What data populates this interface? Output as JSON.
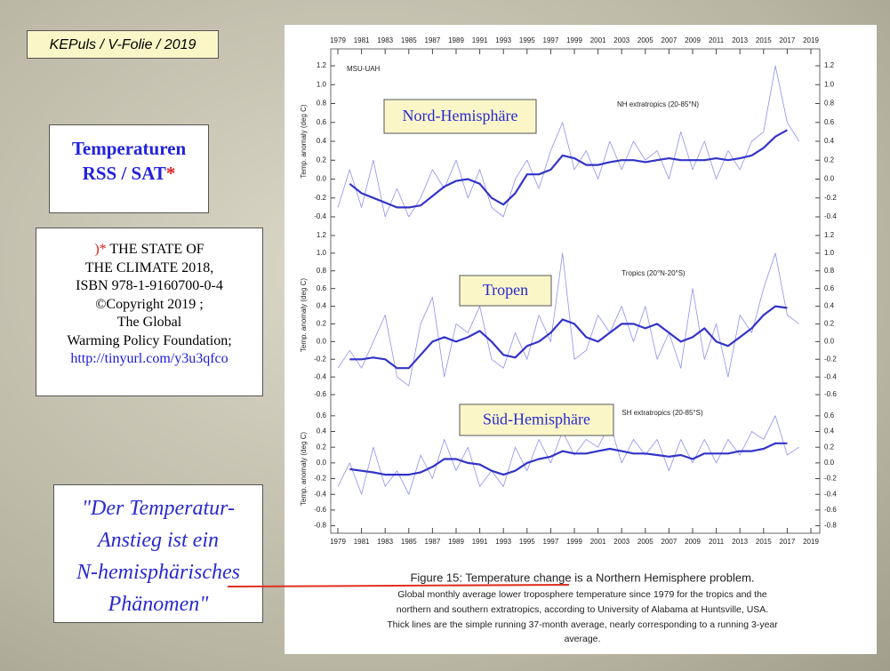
{
  "header": "KEPuls / V-Folie / 2019",
  "title": [
    "Temperaturen",
    "RSS / SAT",
    "*"
  ],
  "citation": {
    "marker": ")*",
    "lines": [
      "THE STATE OF",
      "THE CLIMATE 2018,",
      "ISBN 978-1-9160700-0-4",
      "©Copyright 2019 ;",
      "The Global",
      "Warming Policy Foundation;"
    ],
    "link": "http://tinyurl.com/y3u3qfco"
  },
  "quote": [
    "\"Der Temperatur-",
    "Anstieg ist ein",
    "N-hemisphärisches",
    "Phänomen\""
  ],
  "caption": {
    "title": "Figure 15: Temperature change is a Northern Hemisphere problem.",
    "lines": [
      "Global monthly average lower troposphere temperature since 1979 for the tropics and the",
      "northern and southern extratropics, according to University of Alabama at Huntsville, USA.",
      "Thick lines are the simple running 37-month average, nearly corresponding to a running 3-year",
      "average."
    ]
  },
  "chart_data": [
    {
      "type": "line",
      "source": "MSU-UAH",
      "title": "NH extratropics (20-85°N)",
      "label": "Nord-Hemisphäre",
      "ylabel": "Temp. anomaly (deg C)",
      "xlim": [
        1979,
        2019
      ],
      "xticks": [
        1979,
        1981,
        1983,
        1985,
        1987,
        1989,
        1991,
        1993,
        1995,
        1997,
        1999,
        2001,
        2003,
        2005,
        2007,
        2009,
        2011,
        2013,
        2015,
        2017,
        2019
      ],
      "ylim": [
        -0.5,
        1.3
      ],
      "yticks": [
        -0.4,
        -0.2,
        {
          "value": 0,
          "label": "0.0"
        },
        0.2,
        0.4,
        0.6,
        0.8,
        {
          "value": 1,
          "label": "1.0"
        },
        1.2
      ],
      "series": [
        {
          "color": "#9090f0",
          "line_width": 0.8,
          "x": [
            1979,
            1980,
            1981,
            1982,
            1983,
            1984,
            1985,
            1986,
            1987,
            1988,
            1989,
            1990,
            1991,
            1992,
            1993,
            1994,
            1995,
            1996,
            1997,
            1998,
            1999,
            2000,
            2001,
            2002,
            2003,
            2004,
            2005,
            2006,
            2007,
            2008,
            2009,
            2010,
            2011,
            2012,
            2013,
            2014,
            2015,
            2016,
            2017,
            2018
          ],
          "values": [
            -0.3,
            0.1,
            -0.3,
            0.2,
            -0.4,
            -0.1,
            -0.4,
            -0.2,
            0.1,
            -0.1,
            0.2,
            -0.2,
            0.1,
            -0.3,
            -0.4,
            0.0,
            0.2,
            -0.1,
            0.3,
            0.6,
            0.1,
            0.3,
            0.0,
            0.4,
            0.1,
            0.4,
            0.2,
            0.3,
            0.0,
            0.5,
            0.1,
            0.4,
            0.0,
            0.3,
            0.1,
            0.4,
            0.5,
            1.2,
            0.6,
            0.4
          ]
        },
        {
          "color": "#3333c8",
          "line_width": 2.2,
          "x": [
            1980,
            1981,
            1982,
            1983,
            1984,
            1985,
            1986,
            1987,
            1988,
            1989,
            1990,
            1991,
            1992,
            1993,
            1994,
            1995,
            1996,
            1997,
            1998,
            1999,
            2000,
            2001,
            2002,
            2003,
            2004,
            2005,
            2006,
            2007,
            2008,
            2009,
            2010,
            2011,
            2012,
            2013,
            2014,
            2015,
            2016,
            2017
          ],
          "values": [
            -0.05,
            -0.15,
            -0.2,
            -0.25,
            -0.3,
            -0.3,
            -0.28,
            -0.18,
            -0.08,
            -0.02,
            0,
            -0.05,
            -0.2,
            -0.27,
            -0.15,
            0.05,
            0.05,
            0.1,
            0.25,
            0.22,
            0.15,
            0.15,
            0.18,
            0.2,
            0.2,
            0.18,
            0.2,
            0.22,
            0.2,
            0.2,
            0.2,
            0.22,
            0.2,
            0.22,
            0.25,
            0.33,
            0.45,
            0.52
          ]
        }
      ]
    },
    {
      "type": "line",
      "title": "Tropics (20°N-20°S)",
      "label": "Tropen",
      "ylabel": "Temp. anomaly (deg C)",
      "xlim": [
        1979,
        2019
      ],
      "ylim": [
        -0.7,
        1.3
      ],
      "yticks": [
        -0.6,
        -0.4,
        -0.2,
        {
          "value": 0,
          "label": "0.0"
        },
        0.2,
        0.4,
        0.6,
        0.8,
        {
          "value": 1,
          "label": "1.0"
        },
        1.2
      ],
      "series": [
        {
          "color": "#9090f0",
          "line_width": 0.8,
          "x": [
            1979,
            1980,
            1981,
            1982,
            1983,
            1984,
            1985,
            1986,
            1987,
            1988,
            1989,
            1990,
            1991,
            1992,
            1993,
            1994,
            1995,
            1996,
            1997,
            1998,
            1999,
            2000,
            2001,
            2002,
            2003,
            2004,
            2005,
            2006,
            2007,
            2008,
            2009,
            2010,
            2011,
            2012,
            2013,
            2014,
            2015,
            2016,
            2017,
            2018
          ],
          "values": [
            -0.3,
            -0.1,
            -0.3,
            0.0,
            0.3,
            -0.4,
            -0.5,
            0.2,
            0.5,
            -0.4,
            0.2,
            0.1,
            0.4,
            -0.2,
            -0.3,
            0.1,
            -0.2,
            0.3,
            0.0,
            1.0,
            -0.2,
            -0.1,
            0.3,
            0.1,
            0.4,
            0.0,
            0.4,
            -0.2,
            0.1,
            -0.3,
            0.6,
            -0.2,
            0.2,
            -0.4,
            0.3,
            0.1,
            0.6,
            1.0,
            0.3,
            0.2
          ]
        },
        {
          "color": "#3333c8",
          "line_width": 2.2,
          "x": [
            1980,
            1981,
            1982,
            1983,
            1984,
            1985,
            1986,
            1987,
            1988,
            1989,
            1990,
            1991,
            1992,
            1993,
            1994,
            1995,
            1996,
            1997,
            1998,
            1999,
            2000,
            2001,
            2002,
            2003,
            2004,
            2005,
            2006,
            2007,
            2008,
            2009,
            2010,
            2011,
            2012,
            2013,
            2014,
            2015,
            2016,
            2017
          ],
          "values": [
            -0.2,
            -0.2,
            -0.18,
            -0.2,
            -0.3,
            -0.3,
            -0.15,
            0,
            0.05,
            0,
            0.05,
            0.12,
            0,
            -0.15,
            -0.18,
            -0.05,
            0,
            0.1,
            0.25,
            0.2,
            0.05,
            0,
            0.1,
            0.2,
            0.2,
            0.15,
            0.2,
            0.1,
            0,
            0.05,
            0.15,
            0,
            -0.05,
            0.05,
            0.15,
            0.3,
            0.4,
            0.38
          ]
        }
      ]
    },
    {
      "type": "line",
      "title": "SH extratropics (20-85°S)",
      "label": "Süd-Hemisphäre",
      "ylabel": "Temp. anomaly (deg C)",
      "xlim": [
        1979,
        2019
      ],
      "xticks": [
        1979,
        1981,
        1983,
        1985,
        1987,
        1989,
        1991,
        1993,
        1995,
        1997,
        1999,
        2001,
        2003,
        2005,
        2007,
        2009,
        2011,
        2013,
        2015,
        2017,
        2019
      ],
      "ylim": [
        -0.85,
        0.7
      ],
      "yticks": [
        -0.8,
        -0.6,
        -0.4,
        -0.2,
        {
          "value": 0,
          "label": "0.0"
        },
        0.2,
        0.4,
        0.6
      ],
      "series": [
        {
          "color": "#9090f0",
          "line_width": 0.8,
          "x": [
            1979,
            1980,
            1981,
            1982,
            1983,
            1984,
            1985,
            1986,
            1987,
            1988,
            1989,
            1990,
            1991,
            1992,
            1993,
            1994,
            1995,
            1996,
            1997,
            1998,
            1999,
            2000,
            2001,
            2002,
            2003,
            2004,
            2005,
            2006,
            2007,
            2008,
            2009,
            2010,
            2011,
            2012,
            2013,
            2014,
            2015,
            2016,
            2017,
            2018
          ],
          "values": [
            -0.3,
            0.0,
            -0.4,
            0.2,
            -0.3,
            -0.1,
            -0.4,
            0.1,
            -0.2,
            0.3,
            -0.1,
            0.2,
            -0.3,
            -0.1,
            -0.3,
            0.2,
            -0.1,
            0.3,
            0.0,
            0.4,
            0.1,
            0.3,
            0.2,
            0.5,
            0.0,
            0.3,
            0.1,
            0.3,
            -0.1,
            0.3,
            0.0,
            0.3,
            0.0,
            0.3,
            0.1,
            0.4,
            0.3,
            0.6,
            0.1,
            0.2
          ]
        },
        {
          "color": "#3333c8",
          "line_width": 2.2,
          "x": [
            1980,
            1981,
            1982,
            1983,
            1984,
            1985,
            1986,
            1987,
            1988,
            1989,
            1990,
            1991,
            1992,
            1993,
            1994,
            1995,
            1996,
            1997,
            1998,
            1999,
            2000,
            2001,
            2002,
            2003,
            2004,
            2005,
            2006,
            2007,
            2008,
            2009,
            2010,
            2011,
            2012,
            2013,
            2014,
            2015,
            2016,
            2017
          ],
          "values": [
            -0.08,
            -0.1,
            -0.12,
            -0.15,
            -0.15,
            -0.15,
            -0.12,
            -0.05,
            0.05,
            0.05,
            0,
            -0.02,
            -0.1,
            -0.15,
            -0.1,
            0,
            0.05,
            0.08,
            0.15,
            0.12,
            0.12,
            0.15,
            0.18,
            0.15,
            0.12,
            0.12,
            0.1,
            0.08,
            0.1,
            0.05,
            0.12,
            0.12,
            0.12,
            0.15,
            0.15,
            0.18,
            0.25,
            0.25
          ]
        }
      ]
    }
  ]
}
